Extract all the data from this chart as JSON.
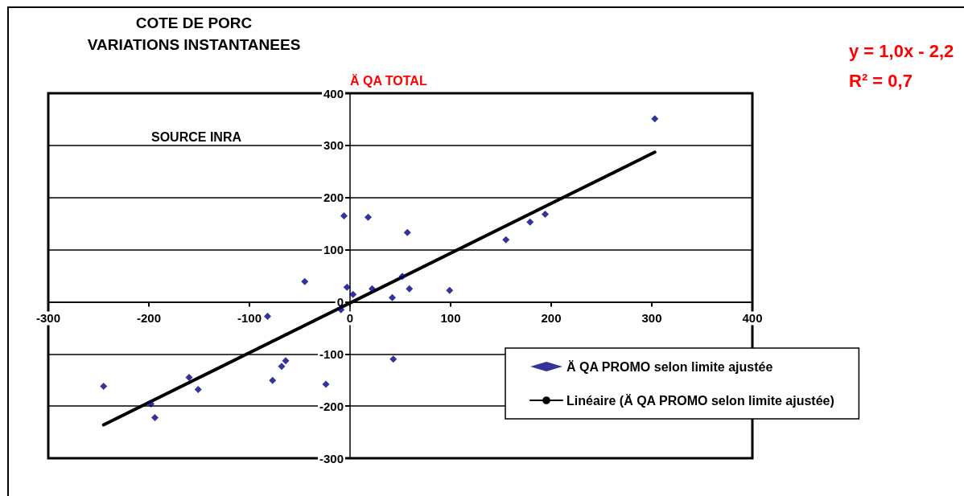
{
  "chart_data": {
    "type": "scatter",
    "title": "COTE DE PORC",
    "subtitle": "VARIATIONS INSTANTANEES",
    "ylabel": "Ä QA TOTAL",
    "annotations": [
      "y = 1,0x - 2,2",
      "R² = 0,7",
      "SOURCE INRA"
    ],
    "series": [
      {
        "name": "Ä QA PROMO selon limite ajustée",
        "color": "#000080",
        "marker": "diamond",
        "x": [
          303,
          155,
          194,
          179,
          57,
          -6,
          18,
          -45,
          -3,
          3,
          22,
          52,
          59,
          99,
          42,
          -9,
          -82,
          43,
          -64,
          -68,
          -77,
          -24,
          -160,
          -151,
          -245,
          -198,
          -194
        ],
        "values": [
          351,
          119,
          168,
          153,
          133,
          165,
          162,
          39,
          28,
          14,
          25,
          49,
          25,
          22,
          8,
          -15,
          -28,
          -110,
          -113,
          -124,
          -151,
          -158,
          -145,
          -168,
          -162,
          -196,
          -222
        ]
      },
      {
        "name": "Linéaire (Ä QA PROMO selon limite ajustée)",
        "type": "line",
        "color": "#000000",
        "marker": "none",
        "line_style": "solid",
        "x": [
          -245,
          303
        ],
        "values": [
          -236,
          287
        ]
      }
    ],
    "xlim": [
      -300,
      400
    ],
    "xticks": [
      -300,
      -200,
      -100,
      0,
      100,
      200,
      300,
      400
    ],
    "ylim": [
      -300,
      400
    ],
    "yticks": [
      -300,
      -200,
      -100,
      0,
      100,
      200,
      300,
      400
    ],
    "grid": "y",
    "legend": "bottom right"
  }
}
